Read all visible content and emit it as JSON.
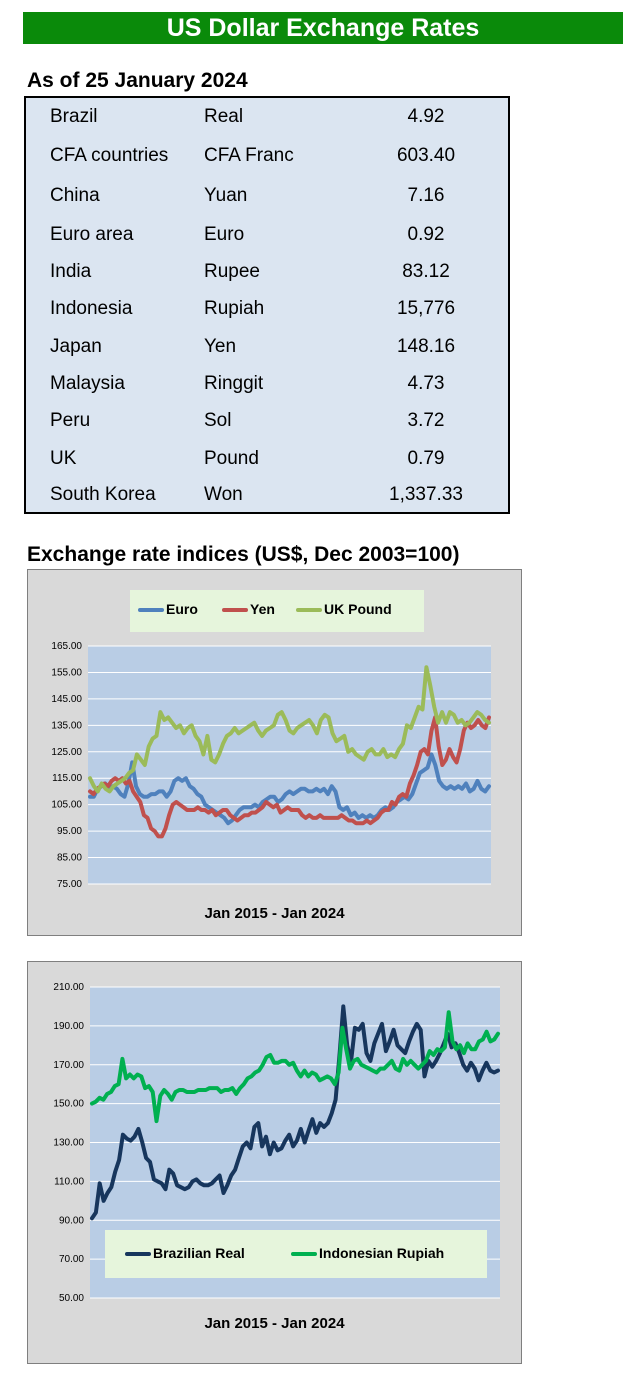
{
  "header": {
    "title": "US Dollar Exchange Rates"
  },
  "rates": {
    "as_of": "As of 25 January 2024",
    "rows": [
      {
        "country": "Brazil",
        "currency": "Real",
        "value": "4.92"
      },
      {
        "country": "CFA countries",
        "currency": "CFA Franc",
        "value": "603.40"
      },
      {
        "country": "China",
        "currency": "Yuan",
        "value": "7.16"
      },
      {
        "country": "Euro area",
        "currency": "Euro",
        "value": "0.92"
      },
      {
        "country": "India",
        "currency": "Rupee",
        "value": "83.12"
      },
      {
        "country": "Indonesia",
        "currency": "Rupiah",
        "value": "15,776"
      },
      {
        "country": "Japan",
        "currency": "Yen",
        "value": "148.16"
      },
      {
        "country": "Malaysia",
        "currency": "Ringgit",
        "value": "4.73"
      },
      {
        "country": "Peru",
        "currency": "Sol",
        "value": "3.72"
      },
      {
        "country": "UK",
        "currency": "Pound",
        "value": "0.79"
      },
      {
        "country": "South Korea",
        "currency": "Won",
        "value": "1,337.33"
      }
    ]
  },
  "indices_title": "Exchange rate indices (US$, Dec 2003=100)",
  "colors": {
    "banner": "#0a8a0a",
    "table_bg": "#dbe5f1",
    "plot_bg": "#b9cde5",
    "frame_bg": "#d9d9d9",
    "legend_bg": "#e6f5dc"
  },
  "chart_data": [
    {
      "type": "line",
      "xlabel": "Jan 2015 - Jan 2024",
      "ylim": [
        75,
        165
      ],
      "yticks": [
        "75.00",
        "85.00",
        "95.00",
        "105.00",
        "115.00",
        "125.00",
        "135.00",
        "145.00",
        "155.00",
        "165.00"
      ],
      "grid": true,
      "legend_position": "top",
      "series": [
        {
          "name": "Euro",
          "color": "#4f81bd",
          "values": [
            108,
            108,
            111,
            112,
            113,
            111,
            112,
            111,
            109,
            108,
            113,
            121,
            112,
            109,
            108,
            108,
            109,
            109,
            110,
            110,
            108,
            110,
            114,
            115,
            114,
            115,
            112,
            111,
            109,
            108,
            105,
            104,
            103,
            102,
            101,
            100,
            98,
            99,
            101,
            103,
            104,
            104,
            104,
            105,
            104,
            106,
            107,
            108,
            108,
            106,
            107,
            109,
            110,
            109,
            110,
            111,
            111,
            110,
            110,
            111,
            110,
            111,
            109,
            112,
            110,
            104,
            103,
            104,
            101,
            102,
            100,
            101,
            100,
            101,
            100,
            101,
            103,
            104,
            103,
            104,
            106,
            107,
            108,
            107,
            109,
            113,
            117,
            118,
            119,
            124,
            120,
            114,
            112,
            111,
            112,
            111,
            112,
            111,
            113,
            110,
            111,
            114,
            111,
            110,
            112
          ]
        },
        {
          "name": "Yen",
          "color": "#c0504d",
          "values": [
            110,
            109,
            111,
            112,
            113,
            112,
            114,
            115,
            114,
            115,
            113,
            114,
            110,
            108,
            106,
            101,
            100,
            96,
            95,
            93,
            93,
            96,
            101,
            105,
            106,
            105,
            104,
            103,
            103,
            103,
            104,
            103,
            103,
            102,
            103,
            101,
            102,
            103,
            103,
            101,
            100,
            99,
            100,
            101,
            101,
            102,
            102,
            103,
            104,
            106,
            105,
            104,
            105,
            102,
            103,
            104,
            103,
            103,
            103,
            101,
            100,
            101,
            100,
            100,
            101,
            100,
            100,
            100,
            100,
            100,
            101,
            100,
            99,
            99,
            98,
            98,
            98,
            99,
            98,
            99,
            100,
            102,
            103,
            103,
            106,
            105,
            108,
            109,
            108,
            113,
            116,
            120,
            125,
            126,
            124,
            133,
            138,
            127,
            120,
            122,
            126,
            123,
            121,
            126,
            133,
            136,
            134,
            135,
            137,
            135,
            134,
            138
          ]
        },
        {
          "name": "UK Pound",
          "color": "#9bbb59",
          "values": [
            115,
            112,
            110,
            113,
            111,
            110,
            112,
            113,
            114,
            115,
            117,
            118,
            124,
            122,
            120,
            127,
            130,
            131,
            140,
            137,
            138,
            136,
            134,
            135,
            132,
            134,
            135,
            131,
            129,
            124,
            131,
            122,
            121,
            124,
            128,
            131,
            132,
            134,
            132,
            133,
            134,
            135,
            136,
            133,
            131,
            133,
            134,
            135,
            139,
            140,
            137,
            133,
            132,
            134,
            135,
            136,
            137,
            135,
            132,
            137,
            139,
            138,
            132,
            129,
            130,
            131,
            125,
            126,
            124,
            123,
            122,
            125,
            126,
            124,
            124,
            126,
            123,
            124,
            123,
            126,
            128,
            135,
            134,
            138,
            142,
            141,
            157,
            150,
            142,
            136,
            140,
            136,
            140,
            139,
            136,
            137,
            135,
            136,
            138,
            140,
            139,
            137,
            136
          ]
        }
      ]
    },
    {
      "type": "line",
      "xlabel": "Jan 2015 - Jan 2024",
      "ylim": [
        50,
        210
      ],
      "yticks": [
        "50.00",
        "70.00",
        "90.00",
        "110.00",
        "130.00",
        "150.00",
        "170.00",
        "190.00",
        "210.00"
      ],
      "grid": true,
      "legend_position": "bottom",
      "series": [
        {
          "name": "Brazilian Real",
          "color": "#17365d",
          "values": [
            91,
            94,
            109,
            100,
            104,
            107,
            115,
            121,
            134,
            132,
            131,
            133,
            137,
            130,
            122,
            120,
            111,
            110,
            109,
            106,
            116,
            114,
            108,
            107,
            106,
            107,
            110,
            111,
            109,
            108,
            108,
            109,
            111,
            113,
            104,
            108,
            113,
            116,
            122,
            128,
            130,
            127,
            138,
            140,
            128,
            133,
            124,
            130,
            126,
            127,
            131,
            134,
            128,
            131,
            137,
            130,
            136,
            142,
            135,
            140,
            138,
            140,
            145,
            152,
            175,
            200,
            180,
            172,
            189,
            188,
            191,
            176,
            172,
            181,
            186,
            191,
            177,
            182,
            188,
            180,
            178,
            176,
            182,
            187,
            191,
            188,
            164,
            172,
            169,
            172,
            176,
            181,
            186,
            179,
            181,
            176,
            170,
            167,
            171,
            168,
            162,
            167,
            171,
            167,
            166,
            167
          ]
        },
        {
          "name": "Indonesian Rupiah",
          "color": "#00b050",
          "values": [
            150,
            151,
            153,
            152,
            155,
            156,
            159,
            160,
            173,
            163,
            165,
            163,
            165,
            164,
            158,
            159,
            156,
            141,
            154,
            157,
            155,
            152,
            156,
            157,
            157,
            156,
            156,
            156,
            157,
            157,
            157,
            158,
            158,
            158,
            156,
            157,
            157,
            158,
            155,
            158,
            160,
            163,
            164,
            166,
            167,
            170,
            174,
            175,
            171,
            171,
            172,
            172,
            170,
            171,
            167,
            164,
            167,
            164,
            166,
            165,
            162,
            163,
            164,
            163,
            160,
            166,
            189,
            178,
            168,
            172,
            173,
            170,
            169,
            168,
            167,
            166,
            168,
            168,
            170,
            172,
            168,
            167,
            173,
            170,
            172,
            170,
            168,
            170,
            172,
            177,
            175,
            178,
            177,
            179,
            197,
            182,
            178,
            180,
            176,
            181,
            178,
            178,
            182,
            183,
            187,
            182,
            183,
            186
          ]
        }
      ]
    }
  ]
}
